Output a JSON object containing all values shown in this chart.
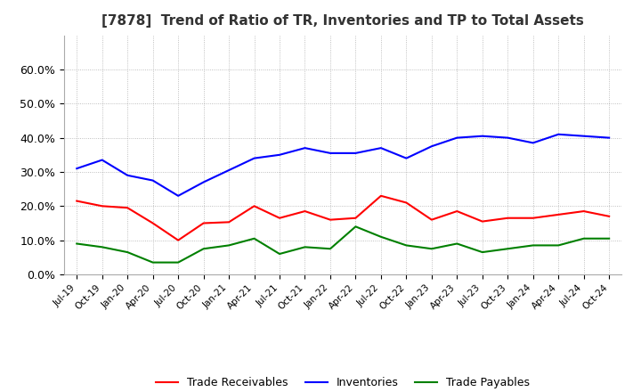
{
  "title": "[7878]  Trend of Ratio of TR, Inventories and TP to Total Assets",
  "x_labels": [
    "Jul-19",
    "Oct-19",
    "Jan-20",
    "Apr-20",
    "Jul-20",
    "Oct-20",
    "Jan-21",
    "Apr-21",
    "Jul-21",
    "Oct-21",
    "Jan-22",
    "Apr-22",
    "Jul-22",
    "Oct-22",
    "Jan-23",
    "Apr-23",
    "Jul-23",
    "Oct-23",
    "Jan-24",
    "Apr-24",
    "Jul-24",
    "Oct-24"
  ],
  "trade_receivables": [
    0.215,
    0.2,
    0.195,
    0.15,
    0.1,
    0.15,
    0.153,
    0.2,
    0.165,
    0.185,
    0.16,
    0.165,
    0.23,
    0.21,
    0.16,
    0.185,
    0.155,
    0.165,
    0.165,
    0.175,
    0.185,
    0.17
  ],
  "inventories": [
    0.31,
    0.335,
    0.29,
    0.275,
    0.23,
    0.27,
    0.305,
    0.34,
    0.35,
    0.37,
    0.355,
    0.355,
    0.37,
    0.34,
    0.375,
    0.4,
    0.405,
    0.4,
    0.385,
    0.41,
    0.405,
    0.4
  ],
  "trade_payables": [
    0.09,
    0.08,
    0.065,
    0.035,
    0.035,
    0.075,
    0.085,
    0.105,
    0.06,
    0.08,
    0.075,
    0.14,
    0.11,
    0.085,
    0.075,
    0.09,
    0.065,
    0.075,
    0.085,
    0.085,
    0.105,
    0.105
  ],
  "tr_color": "#ff0000",
  "inv_color": "#0000ff",
  "tp_color": "#008000",
  "ylim": [
    0.0,
    0.7
  ],
  "yticks": [
    0.0,
    0.1,
    0.2,
    0.3,
    0.4,
    0.5,
    0.6
  ],
  "background_color": "#ffffff",
  "grid_color": "#999999",
  "title_color": "#333333",
  "legend_tr": "Trade Receivables",
  "legend_inv": "Inventories",
  "legend_tp": "Trade Payables"
}
